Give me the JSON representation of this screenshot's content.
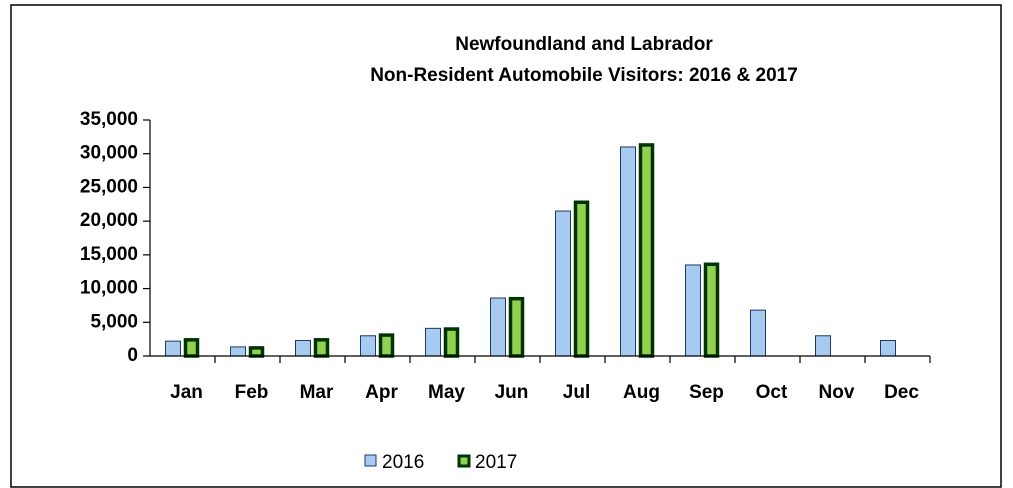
{
  "chart_data": {
    "type": "bar",
    "title": "Newfoundland and Labrador",
    "subtitle": "Non-Resident Automobile Visitors: 2016 & 2017",
    "categories": [
      "Jan",
      "Feb",
      "Mar",
      "Apr",
      "May",
      "Jun",
      "Jul",
      "Aug",
      "Sep",
      "Oct",
      "Nov",
      "Dec"
    ],
    "series": [
      {
        "name": "2016",
        "color": "#a6caf0",
        "values": [
          2200,
          1350,
          2300,
          3000,
          4100,
          8600,
          21500,
          31000,
          13500,
          6800,
          3000,
          2300
        ]
      },
      {
        "name": "2017",
        "color": "#92d050",
        "values": [
          2400,
          1200,
          2400,
          3100,
          4000,
          8500,
          22800,
          31300,
          13600,
          null,
          null,
          null
        ]
      }
    ],
    "ylim": [
      0,
      35000
    ],
    "yticks": [
      0,
      {
        "value": 5000,
        "label": "5,000"
      },
      {
        "value": 10000,
        "label": "10,000"
      },
      {
        "value": 15000,
        "label": "15,000"
      },
      {
        "value": 20000,
        "label": "20,000"
      },
      {
        "value": 25000,
        "label": "25,000"
      },
      {
        "value": 30000,
        "label": "30,000"
      },
      {
        "value": 35000,
        "label": "35,000"
      }
    ],
    "legend": "bottom"
  }
}
